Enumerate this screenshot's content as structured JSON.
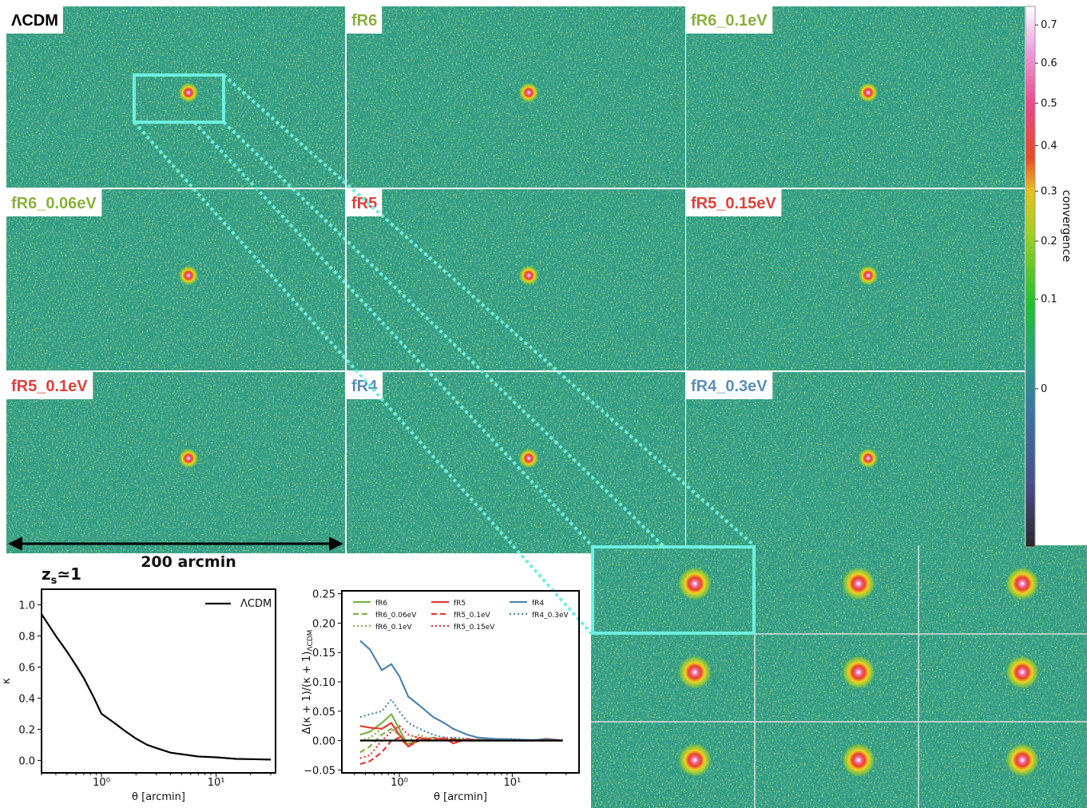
{
  "maps": {
    "panels": [
      {
        "label": "ΛCDM",
        "color": "#000000"
      },
      {
        "label": "fR6",
        "color": "#8ab13a"
      },
      {
        "label": "fR6_0.1eV",
        "color": "#8ab13a"
      },
      {
        "label": "fR6_0.06eV",
        "color": "#8ab13a"
      },
      {
        "label": "fR5",
        "color": "#e0403a"
      },
      {
        "label": "fR5_0.15eV",
        "color": "#e0403a"
      },
      {
        "label": "fR5_0.1eV",
        "color": "#e0403a"
      },
      {
        "label": "fR4",
        "color": "#5a8fb8"
      },
      {
        "label": "fR4_0.3eV",
        "color": "#5a8fb8"
      }
    ],
    "scale_bar": "200 arcmin"
  },
  "colorbar": {
    "label": "convergence",
    "lim": [
      -0.22,
      0.75
    ],
    "scale": "power",
    "exponent": 0.72,
    "ticks": [
      0,
      0.1,
      0.2,
      0.3,
      0.4,
      0.5,
      0.6,
      0.7
    ]
  },
  "chart_data": [
    {
      "type": "line",
      "title": "z",
      "title_subscript": "s",
      "title_suffix": "≃1",
      "xlabel": "θ  [arcmin]",
      "ylabel": "κ",
      "xscale": "log",
      "xlim": [
        0.3,
        33
      ],
      "xticks": [
        {
          "value": 1,
          "label": "10⁰"
        },
        {
          "value": 10,
          "label": "10¹"
        }
      ],
      "ylim": [
        -0.08,
        1.1
      ],
      "yticks": [
        {
          "value": 0,
          "label": "0.0"
        },
        0.2,
        0.4,
        0.6,
        0.8,
        {
          "value": 1,
          "label": "1.0"
        }
      ],
      "legend": "upper right",
      "x": [
        0.3,
        0.4,
        0.5,
        0.6,
        0.7,
        0.85,
        1,
        1.3,
        1.6,
        2,
        2.5,
        3,
        4,
        5,
        7,
        10,
        15,
        20,
        30
      ],
      "series": [
        {
          "name": "ΛCDM",
          "color": "#000000",
          "dash": "solid",
          "values": [
            0.94,
            0.8,
            0.7,
            0.61,
            0.53,
            0.41,
            0.3,
            0.24,
            0.19,
            0.14,
            0.1,
            0.08,
            0.05,
            0.04,
            0.025,
            0.02,
            0.01,
            0.008,
            0.005
          ]
        }
      ]
    },
    {
      "type": "line",
      "xlabel": "θ  [arcmin]",
      "ylabel": "Δ(κ + 1)/(κ + 1)",
      "ylabel_subscript": "ΛCDM",
      "xscale": "log",
      "xlim": [
        0.31,
        39
      ],
      "xticks": [
        {
          "value": 1,
          "label": "10⁰"
        },
        {
          "value": 10,
          "label": "10¹"
        }
      ],
      "ylim": [
        -0.055,
        0.255
      ],
      "yticks": [
        {
          "value": -0.05,
          "label": "−0.05"
        },
        {
          "value": 0,
          "label": "0.00"
        },
        {
          "value": 0.05,
          "label": "0.05"
        },
        {
          "value": 0.1,
          "label": "0.10"
        },
        {
          "value": 0.15,
          "label": "0.15"
        },
        {
          "value": 0.2,
          "label": "0.20"
        },
        {
          "value": 0.25,
          "label": "0.25"
        }
      ],
      "legend": "upper center",
      "legend_columns": 3,
      "x": [
        0.45,
        0.55,
        0.7,
        0.85,
        1.0,
        1.2,
        1.5,
        2,
        2.5,
        3,
        4,
        5,
        7,
        10,
        15,
        20,
        28
      ],
      "series": [
        {
          "name": "fR6",
          "color": "#7cb342",
          "dash": "solid",
          "values": [
            0.01,
            0.015,
            0.03,
            0.045,
            0.02,
            -0.01,
            0.0,
            0.005,
            0,
            0.003,
            0,
            0.002,
            0,
            0.001,
            0,
            0,
            0
          ]
        },
        {
          "name": "fR6_0.06eV",
          "color": "#7cb342",
          "dash": "dashed",
          "values": [
            -0.02,
            -0.01,
            0.01,
            0.02,
            0.01,
            -0.005,
            0,
            0,
            0.002,
            0,
            0.001,
            0,
            0,
            0,
            0,
            0,
            0
          ]
        },
        {
          "name": "fR6_0.1eV",
          "color": "#7cb342",
          "dash": "dotted",
          "values": [
            0.0,
            0.005,
            0.02,
            0.03,
            0.01,
            0.0,
            0.01,
            0,
            0,
            0,
            0,
            0,
            0,
            0,
            0,
            0,
            0
          ]
        },
        {
          "name": "fR5",
          "color": "#e53935",
          "dash": "solid",
          "values": [
            0.025,
            0.022,
            0.02,
            0.03,
            0.01,
            -0.01,
            0.005,
            0,
            0.005,
            -0.005,
            0.003,
            0,
            0.002,
            0,
            0,
            0.003,
            0
          ]
        },
        {
          "name": "fR5_0.1eV",
          "color": "#e53935",
          "dash": "dashed",
          "values": [
            -0.04,
            -0.035,
            -0.02,
            0.0,
            0.005,
            -0.01,
            0,
            0.005,
            0,
            0.003,
            0,
            0,
            0,
            0,
            0,
            0,
            0
          ]
        },
        {
          "name": "fR5_0.15eV",
          "color": "#e53935",
          "dash": "dotted",
          "values": [
            -0.03,
            -0.025,
            0.0,
            0.015,
            0.025,
            0.01,
            0.005,
            0,
            0.003,
            0,
            0,
            0,
            0,
            0,
            0,
            0,
            0
          ]
        },
        {
          "name": "fR4",
          "color": "#4f86b0",
          "dash": "solid",
          "values": [
            0.17,
            0.155,
            0.12,
            0.13,
            0.11,
            0.075,
            0.06,
            0.04,
            0.03,
            0.02,
            0.01,
            0.005,
            0.003,
            0.002,
            0.001,
            0.002,
            0.0
          ]
        },
        {
          "name": "fR4_0.3eV",
          "color": "#4f86b0",
          "dash": "dotted",
          "values": [
            0.04,
            0.045,
            0.05,
            0.07,
            0.05,
            0.03,
            0.02,
            0.01,
            0.005,
            0.005,
            0.003,
            0,
            0.002,
            0.003,
            0,
            0.001,
            0
          ]
        },
        {
          "color": "#000000",
          "dash": "solid",
          "values": [
            0,
            0,
            0,
            0,
            0,
            0,
            0,
            0,
            0,
            0,
            0,
            0,
            0,
            0,
            0,
            0,
            0
          ]
        }
      ]
    }
  ]
}
